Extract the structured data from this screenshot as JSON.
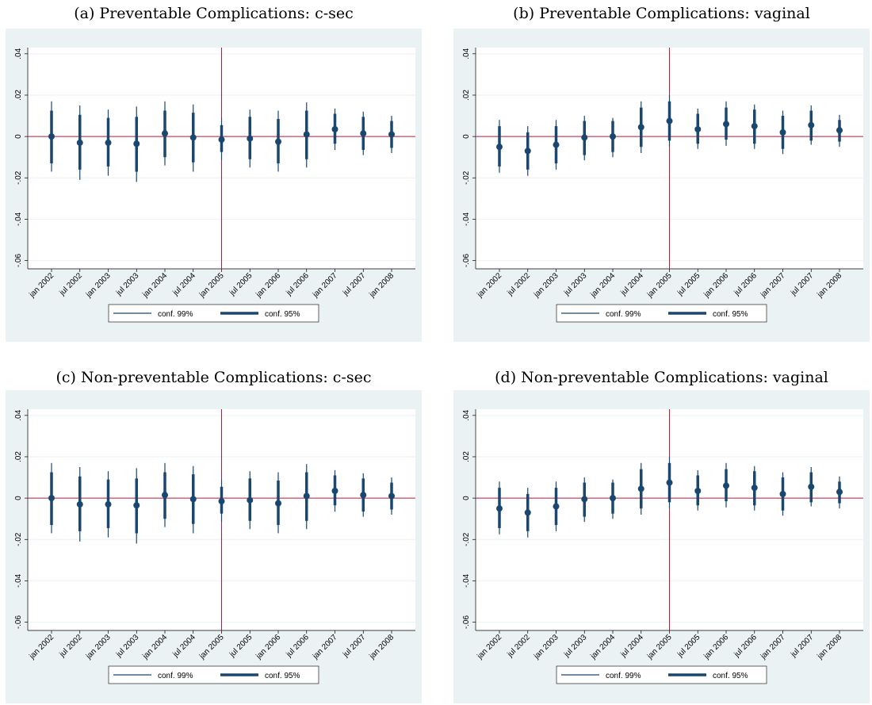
{
  "chart_data": [
    {
      "type": "errorbar",
      "title": "(a) Preventable Complications: c-sec",
      "categories": [
        "jan 2002",
        "jul 2002",
        "jan 2003",
        "jul 2003",
        "jan 2004",
        "jul 2004",
        "jan 2005",
        "jul 2005",
        "jan 2006",
        "jul 2006",
        "jan 2007",
        "jul 2007",
        "jan 2008"
      ],
      "values": [
        0,
        -0.003,
        -0.003,
        -0.0035,
        0.0015,
        -0.0005,
        -0.0015,
        -0.001,
        -0.0025,
        0.001,
        0.0035,
        0.0015,
        0.001
      ],
      "point_color": "#1a476f",
      "series": [
        {
          "name": "conf. 99%",
          "color": "#1a476f",
          "low": [
            -0.017,
            -0.021,
            -0.019,
            -0.022,
            -0.014,
            -0.017,
            -0.0115,
            -0.015,
            -0.017,
            -0.015,
            -0.0065,
            -0.009,
            -0.008
          ],
          "high": [
            0.017,
            0.015,
            0.013,
            0.0145,
            0.017,
            0.0155,
            0.009,
            0.013,
            0.0125,
            0.0165,
            0.0135,
            0.012,
            0.01
          ]
        },
        {
          "name": "conf. 95%",
          "color": "#1a476f",
          "low": [
            -0.013,
            -0.016,
            -0.0145,
            -0.017,
            -0.01,
            -0.0125,
            -0.0075,
            -0.011,
            -0.013,
            -0.011,
            -0.0035,
            -0.0065,
            -0.0055
          ],
          "high": [
            0.0125,
            0.0105,
            0.009,
            0.0095,
            0.0125,
            0.0115,
            0.0055,
            0.0095,
            0.0085,
            0.0125,
            0.011,
            0.0095,
            0.0075
          ]
        }
      ],
      "ylim": [
        -0.064,
        0.043
      ],
      "yticks": [
        {
          "value": -0.06,
          "label": "-.06"
        },
        {
          "value": -0.04,
          "label": "-.04"
        },
        {
          "value": -0.02,
          "label": "-.02"
        },
        0,
        {
          "value": 0.02,
          "label": ".02"
        },
        {
          "value": 0.04,
          "label": ".04"
        }
      ],
      "grid": true,
      "reference_x": "jan 2005",
      "reference_y": 0,
      "reference_color": "#c0183a"
    },
    {
      "type": "errorbar",
      "title": "(b) Preventable Complications: vaginal",
      "categories": [
        "jan 2002",
        "jul 2002",
        "jan 2003",
        "jul 2003",
        "jan 2004",
        "jul 2004",
        "jan 2005",
        "jul 2005",
        "jan 2006",
        "jul 2006",
        "jan 2007",
        "jul 2007",
        "jan 2008"
      ],
      "values": [
        -0.005,
        -0.007,
        -0.004,
        -0.0005,
        0,
        0.0045,
        0.0075,
        0.0035,
        0.006,
        0.005,
        0.002,
        0.0055,
        0.003
      ],
      "point_color": "#1a476f",
      "series": [
        {
          "name": "conf. 99%",
          "color": "#1a476f",
          "low": [
            -0.0175,
            -0.019,
            -0.016,
            -0.0115,
            -0.01,
            -0.008,
            -0.005,
            -0.006,
            -0.0045,
            -0.006,
            -0.0085,
            -0.004,
            -0.005
          ],
          "high": [
            0.008,
            0.005,
            0.008,
            0.01,
            0.009,
            0.017,
            0.02,
            0.0135,
            0.017,
            0.0155,
            0.0125,
            0.015,
            0.0105
          ]
        },
        {
          "name": "conf. 95%",
          "color": "#1a476f",
          "low": [
            -0.0145,
            -0.016,
            -0.013,
            -0.009,
            -0.0075,
            -0.005,
            -0.002,
            -0.0035,
            -0.0015,
            -0.0035,
            -0.006,
            -0.002,
            -0.0025
          ],
          "high": [
            0.005,
            0.002,
            0.005,
            0.0075,
            0.0075,
            0.014,
            0.017,
            0.011,
            0.014,
            0.013,
            0.01,
            0.0125,
            0.008
          ]
        }
      ],
      "ylim": [
        -0.064,
        0.043
      ],
      "yticks": [
        {
          "value": -0.06,
          "label": "-.06"
        },
        {
          "value": -0.04,
          "label": "-.04"
        },
        {
          "value": -0.02,
          "label": "-.02"
        },
        0,
        {
          "value": 0.02,
          "label": ".02"
        },
        {
          "value": 0.04,
          "label": ".04"
        }
      ],
      "grid": true,
      "reference_x": "jan 2005",
      "reference_y": 0,
      "reference_color": "#c0183a"
    },
    {
      "type": "errorbar",
      "title": "(c) Non-preventable Complications: c-sec",
      "categories": [
        "jan 2002",
        "jul 2002",
        "jan 2003",
        "jul 2003",
        "jan 2004",
        "jul 2004",
        "jan 2005",
        "jul 2005",
        "jan 2006",
        "jul 2006",
        "jan 2007",
        "jul 2007",
        "jan 2008"
      ],
      "values": [
        0,
        -0.003,
        -0.003,
        -0.0035,
        0.0015,
        -0.0005,
        -0.0015,
        -0.001,
        -0.0025,
        0.001,
        0.0035,
        0.0015,
        0.001
      ],
      "point_color": "#1a476f",
      "series": [
        {
          "name": "conf. 99%",
          "color": "#1a476f",
          "low": [
            -0.017,
            -0.021,
            -0.019,
            -0.022,
            -0.014,
            -0.017,
            -0.0115,
            -0.015,
            -0.017,
            -0.015,
            -0.0065,
            -0.009,
            -0.008
          ],
          "high": [
            0.017,
            0.015,
            0.013,
            0.0145,
            0.017,
            0.0155,
            0.009,
            0.013,
            0.0125,
            0.0165,
            0.0135,
            0.012,
            0.01
          ]
        },
        {
          "name": "conf. 95%",
          "color": "#1a476f",
          "low": [
            -0.013,
            -0.016,
            -0.0145,
            -0.017,
            -0.01,
            -0.0125,
            -0.0075,
            -0.011,
            -0.013,
            -0.011,
            -0.0035,
            -0.0065,
            -0.0055
          ],
          "high": [
            0.0125,
            0.0105,
            0.009,
            0.0095,
            0.0125,
            0.0115,
            0.0055,
            0.0095,
            0.0085,
            0.0125,
            0.011,
            0.0095,
            0.0075
          ]
        }
      ],
      "ylim": [
        -0.064,
        0.043
      ],
      "yticks": [
        {
          "value": -0.06,
          "label": "-.06"
        },
        {
          "value": -0.04,
          "label": "-.04"
        },
        {
          "value": -0.02,
          "label": "-.02"
        },
        0,
        {
          "value": 0.02,
          "label": ".02"
        },
        {
          "value": 0.04,
          "label": ".04"
        }
      ],
      "grid": true,
      "reference_x": "jan 2005",
      "reference_y": 0,
      "reference_color": "#c0183a"
    },
    {
      "type": "errorbar",
      "title": "(d) Non-preventable Complications: vaginal",
      "categories": [
        "jan 2002",
        "jul 2002",
        "jan 2003",
        "jul 2003",
        "jan 2004",
        "jul 2004",
        "jan 2005",
        "jul 2005",
        "jan 2006",
        "jul 2006",
        "jan 2007",
        "jul 2007",
        "jan 2008"
      ],
      "values": [
        -0.005,
        -0.007,
        -0.004,
        -0.0005,
        0,
        0.0045,
        0.0075,
        0.0035,
        0.006,
        0.005,
        0.002,
        0.0055,
        0.003
      ],
      "point_color": "#1a476f",
      "series": [
        {
          "name": "conf. 99%",
          "color": "#1a476f",
          "low": [
            -0.0175,
            -0.019,
            -0.016,
            -0.0115,
            -0.01,
            -0.008,
            -0.005,
            -0.006,
            -0.0045,
            -0.006,
            -0.0085,
            -0.004,
            -0.005
          ],
          "high": [
            0.008,
            0.005,
            0.008,
            0.01,
            0.009,
            0.017,
            0.02,
            0.0135,
            0.017,
            0.0155,
            0.0125,
            0.015,
            0.0105
          ]
        },
        {
          "name": "conf. 95%",
          "color": "#1a476f",
          "low": [
            -0.0145,
            -0.016,
            -0.013,
            -0.009,
            -0.0075,
            -0.005,
            -0.002,
            -0.0035,
            -0.0015,
            -0.0035,
            -0.006,
            -0.002,
            -0.0025
          ],
          "high": [
            0.005,
            0.002,
            0.005,
            0.0075,
            0.0075,
            0.014,
            0.017,
            0.011,
            0.014,
            0.013,
            0.01,
            0.0125,
            0.008
          ]
        }
      ],
      "ylim": [
        -0.064,
        0.043
      ],
      "yticks": [
        {
          "value": -0.06,
          "label": "-.06"
        },
        {
          "value": -0.04,
          "label": "-.04"
        },
        {
          "value": -0.02,
          "label": "-.02"
        },
        0,
        {
          "value": 0.02,
          "label": ".02"
        },
        {
          "value": 0.04,
          "label": ".04"
        }
      ],
      "grid": true,
      "reference_x": "jan 2005",
      "reference_y": 0,
      "reference_color": "#c0183a"
    }
  ]
}
